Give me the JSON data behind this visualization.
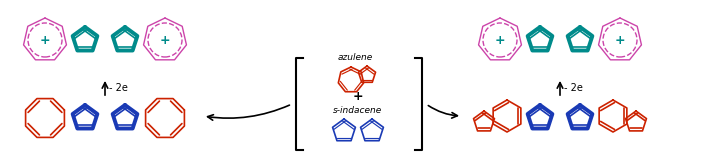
{
  "figsize": [
    7.12,
    1.58
  ],
  "dpi": 100,
  "bg_color": "#ffffff",
  "blue": "#1a3ab5",
  "red": "#cc2200",
  "teal": "#008b8b",
  "magenta": "#cc44aa",
  "minus2e_label": "- 2e",
  "s_indacene_label": "s-indacene",
  "azulene_label": "azulene"
}
